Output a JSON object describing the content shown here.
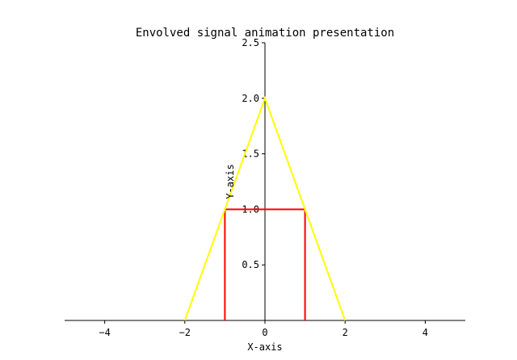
{
  "chart_data": {
    "type": "line",
    "title": "Envolved signal animation presentation",
    "xlabel": "X-axis",
    "ylabel": "Y-axis",
    "xlim": [
      -5,
      5
    ],
    "ylim": [
      0,
      2.5
    ],
    "xticks": [
      -4,
      -2,
      0,
      2,
      4
    ],
    "xtick_labels": [
      "−4",
      "−2",
      "0",
      "2",
      "4"
    ],
    "yticks": [
      0.5,
      1.0,
      1.5,
      2.0,
      2.5
    ],
    "ytick_labels": [
      "0.5",
      "1.0",
      "1.5",
      "2.0",
      "2.5"
    ],
    "grid": false,
    "spines": "centered",
    "series": [
      {
        "color": "#ff0000",
        "x": [
          -1,
          -1,
          1,
          1
        ],
        "y": [
          0,
          1,
          1,
          0
        ]
      },
      {
        "color": "#ffff00",
        "x": [
          -2,
          0,
          2
        ],
        "y": [
          0,
          2,
          0
        ]
      }
    ]
  }
}
